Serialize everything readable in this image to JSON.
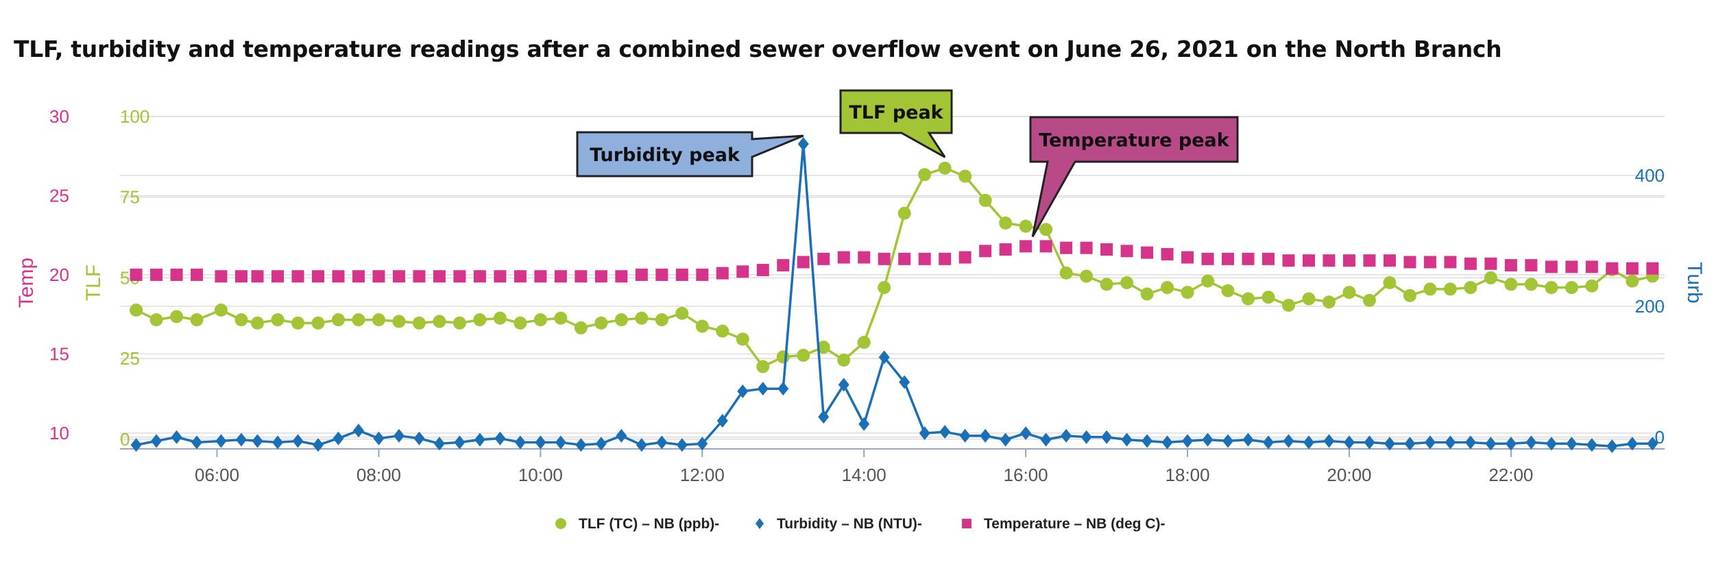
{
  "chart_data": {
    "type": "line",
    "title": "TLF, turbidity and temperature readings after a combined sewer overflow event on June 26, 2021 on the North Branch",
    "x_axis": {
      "unit": "hours",
      "range": [
        4.8,
        23.9
      ],
      "ticks": [
        6,
        8,
        10,
        12,
        14,
        16,
        18,
        20,
        22
      ],
      "tick_labels": [
        "06:00",
        "08:00",
        "10:00",
        "12:00",
        "14:00",
        "16:00",
        "18:00",
        "20:00",
        "22:00"
      ]
    },
    "y_axes": [
      {
        "id": "temp",
        "title": "Temp",
        "color": "#d6338a",
        "range": [
          9,
          30
        ],
        "ticks": [
          10,
          15,
          20,
          25,
          30
        ]
      },
      {
        "id": "tlf",
        "title": "TLF",
        "color": "#a2c435",
        "range": [
          -3,
          100
        ],
        "ticks": [
          0,
          25,
          50,
          75,
          100
        ]
      },
      {
        "id": "turb",
        "title": "Turb",
        "color": "#1a6fb5",
        "range": [
          -18,
          490
        ],
        "ticks": [
          0,
          200,
          400
        ]
      }
    ],
    "series": [
      {
        "name": "TLF (TC) – NB (ppb)-",
        "axis": "tlf",
        "color": "#a2c435",
        "marker": "circle",
        "x": [
          5,
          5.25,
          5.5,
          5.75,
          6.05,
          6.3,
          6.5,
          6.75,
          7,
          7.25,
          7.5,
          7.75,
          8,
          8.25,
          8.5,
          8.75,
          9,
          9.25,
          9.5,
          9.75,
          10,
          10.25,
          10.5,
          10.75,
          11,
          11.25,
          11.5,
          11.75,
          12,
          12.25,
          12.5,
          12.75,
          13,
          13.25,
          13.5,
          13.75,
          14,
          14.25,
          14.5,
          14.75,
          15,
          15.25,
          15.5,
          15.75,
          16,
          16.25,
          16.5,
          16.75,
          17,
          17.25,
          17.5,
          17.75,
          18,
          18.25,
          18.5,
          18.75,
          19,
          19.25,
          19.5,
          19.75,
          20,
          20.25,
          20.5,
          20.75,
          21,
          21.25,
          21.5,
          21.75,
          22,
          22.25,
          22.5,
          22.75,
          23,
          23.25,
          23.5,
          23.75
        ],
        "values": [
          40,
          37,
          38,
          37,
          40,
          37,
          36,
          37,
          36,
          36,
          37,
          37,
          37,
          36.5,
          36,
          36.5,
          36,
          37,
          37.5,
          36,
          37,
          37.5,
          34.5,
          36,
          37,
          37.5,
          37,
          39,
          35,
          33.5,
          31,
          22.5,
          25.5,
          26,
          28.5,
          24.5,
          30,
          47,
          70,
          82,
          84,
          81.5,
          74,
          67,
          66,
          65,
          51.5,
          50.5,
          48,
          48.5,
          45,
          47,
          45.5,
          49,
          46,
          43.5,
          44,
          41.5,
          43.5,
          42.5,
          45.5,
          43,
          48.5,
          44.5,
          46.5,
          46.5,
          47,
          50,
          48,
          48,
          47,
          47,
          47.5,
          52.5,
          49,
          50.5
        ]
      },
      {
        "name": "Turbidity – NB (NTU)-",
        "axis": "turb",
        "color": "#1a6fb5",
        "marker": "diamond",
        "x": [
          5,
          5.25,
          5.5,
          5.75,
          6.05,
          6.3,
          6.5,
          6.75,
          7,
          7.25,
          7.5,
          7.75,
          8,
          8.25,
          8.5,
          8.75,
          9,
          9.25,
          9.5,
          9.75,
          10,
          10.25,
          10.5,
          10.75,
          11,
          11.25,
          11.5,
          11.75,
          12,
          12.25,
          12.5,
          12.75,
          13,
          13.25,
          13.5,
          13.75,
          14,
          14.25,
          14.5,
          14.75,
          15,
          15.25,
          15.5,
          15.75,
          16,
          16.25,
          16.5,
          16.75,
          17,
          17.25,
          17.5,
          17.75,
          18,
          18.25,
          18.5,
          18.75,
          19,
          19.25,
          19.5,
          19.75,
          20,
          20.25,
          20.5,
          20.75,
          21,
          21.25,
          21.5,
          21.75,
          22,
          22.25,
          22.5,
          22.75,
          23,
          23.25,
          23.5,
          23.75
        ],
        "values": [
          -12,
          -6,
          0,
          -8,
          -6,
          -4,
          -6,
          -8,
          -6,
          -12,
          -2,
          10,
          -2,
          2,
          -2,
          -10,
          -8,
          -4,
          -2,
          -8,
          -8,
          -8,
          -12,
          -10,
          2,
          -12,
          -8,
          -12,
          -10,
          25,
          70,
          74,
          74,
          448,
          31,
          80,
          20,
          122,
          84,
          6,
          8,
          2,
          2,
          -4,
          6,
          -4,
          2,
          0,
          0,
          -4,
          -6,
          -8,
          -6,
          -4,
          -6,
          -4,
          -8,
          -6,
          -8,
          -6,
          -8,
          -8,
          -10,
          -10,
          -8,
          -8,
          -8,
          -10,
          -10,
          -8,
          -10,
          -10,
          -12,
          -14,
          -10,
          -10
        ]
      },
      {
        "name": "Temperature – NB (deg C)-",
        "axis": "temp",
        "color": "#d6338a",
        "marker": "square",
        "x": [
          5,
          5.25,
          5.5,
          5.75,
          6.05,
          6.3,
          6.5,
          6.75,
          7,
          7.25,
          7.5,
          7.75,
          8,
          8.25,
          8.5,
          8.75,
          9,
          9.25,
          9.5,
          9.75,
          10,
          10.25,
          10.5,
          10.75,
          11,
          11.25,
          11.5,
          11.75,
          12,
          12.25,
          12.5,
          12.75,
          13,
          13.25,
          13.5,
          13.75,
          14,
          14.25,
          14.5,
          14.75,
          15,
          15.25,
          15.5,
          15.75,
          16,
          16.25,
          16.5,
          16.75,
          17,
          17.25,
          17.5,
          17.75,
          18,
          18.25,
          18.5,
          18.75,
          19,
          19.25,
          19.5,
          19.75,
          20,
          20.25,
          20.5,
          20.75,
          21,
          21.25,
          21.5,
          21.75,
          22,
          22.25,
          22.5,
          22.75,
          23,
          23.25,
          23.5,
          23.75
        ],
        "values": [
          20.0,
          20.0,
          20.0,
          20.0,
          19.9,
          19.9,
          19.9,
          19.9,
          19.9,
          19.9,
          19.9,
          19.9,
          19.9,
          19.9,
          19.9,
          19.9,
          19.9,
          19.9,
          19.9,
          19.9,
          19.9,
          19.9,
          19.9,
          19.9,
          19.9,
          20.0,
          20.0,
          20.0,
          20.0,
          20.1,
          20.2,
          20.3,
          20.6,
          20.8,
          21.0,
          21.1,
          21.1,
          21.0,
          21.0,
          21.0,
          21.0,
          21.1,
          21.5,
          21.6,
          21.8,
          21.8,
          21.7,
          21.7,
          21.6,
          21.5,
          21.4,
          21.3,
          21.1,
          21.0,
          21.0,
          21.0,
          21.0,
          20.9,
          20.9,
          20.9,
          20.9,
          20.9,
          20.9,
          20.8,
          20.8,
          20.8,
          20.7,
          20.7,
          20.6,
          20.6,
          20.5,
          20.5,
          20.5,
          20.4,
          20.4,
          20.4
        ]
      }
    ],
    "annotations": [
      {
        "text": "Turbidity peak",
        "series": "Turbidity – NB (NTU)-",
        "x": 13.25,
        "fill": "#8fb0dc"
      },
      {
        "text": "TLF peak",
        "series": "TLF (TC) – NB (ppb)-",
        "x": 15,
        "fill": "#a2c435"
      },
      {
        "text": "Temperature peak",
        "series": "Temperature – NB (deg C)-",
        "x": 16,
        "fill": "#b84a88"
      }
    ],
    "legend": {
      "position": "bottom-center"
    },
    "grid": true
  }
}
